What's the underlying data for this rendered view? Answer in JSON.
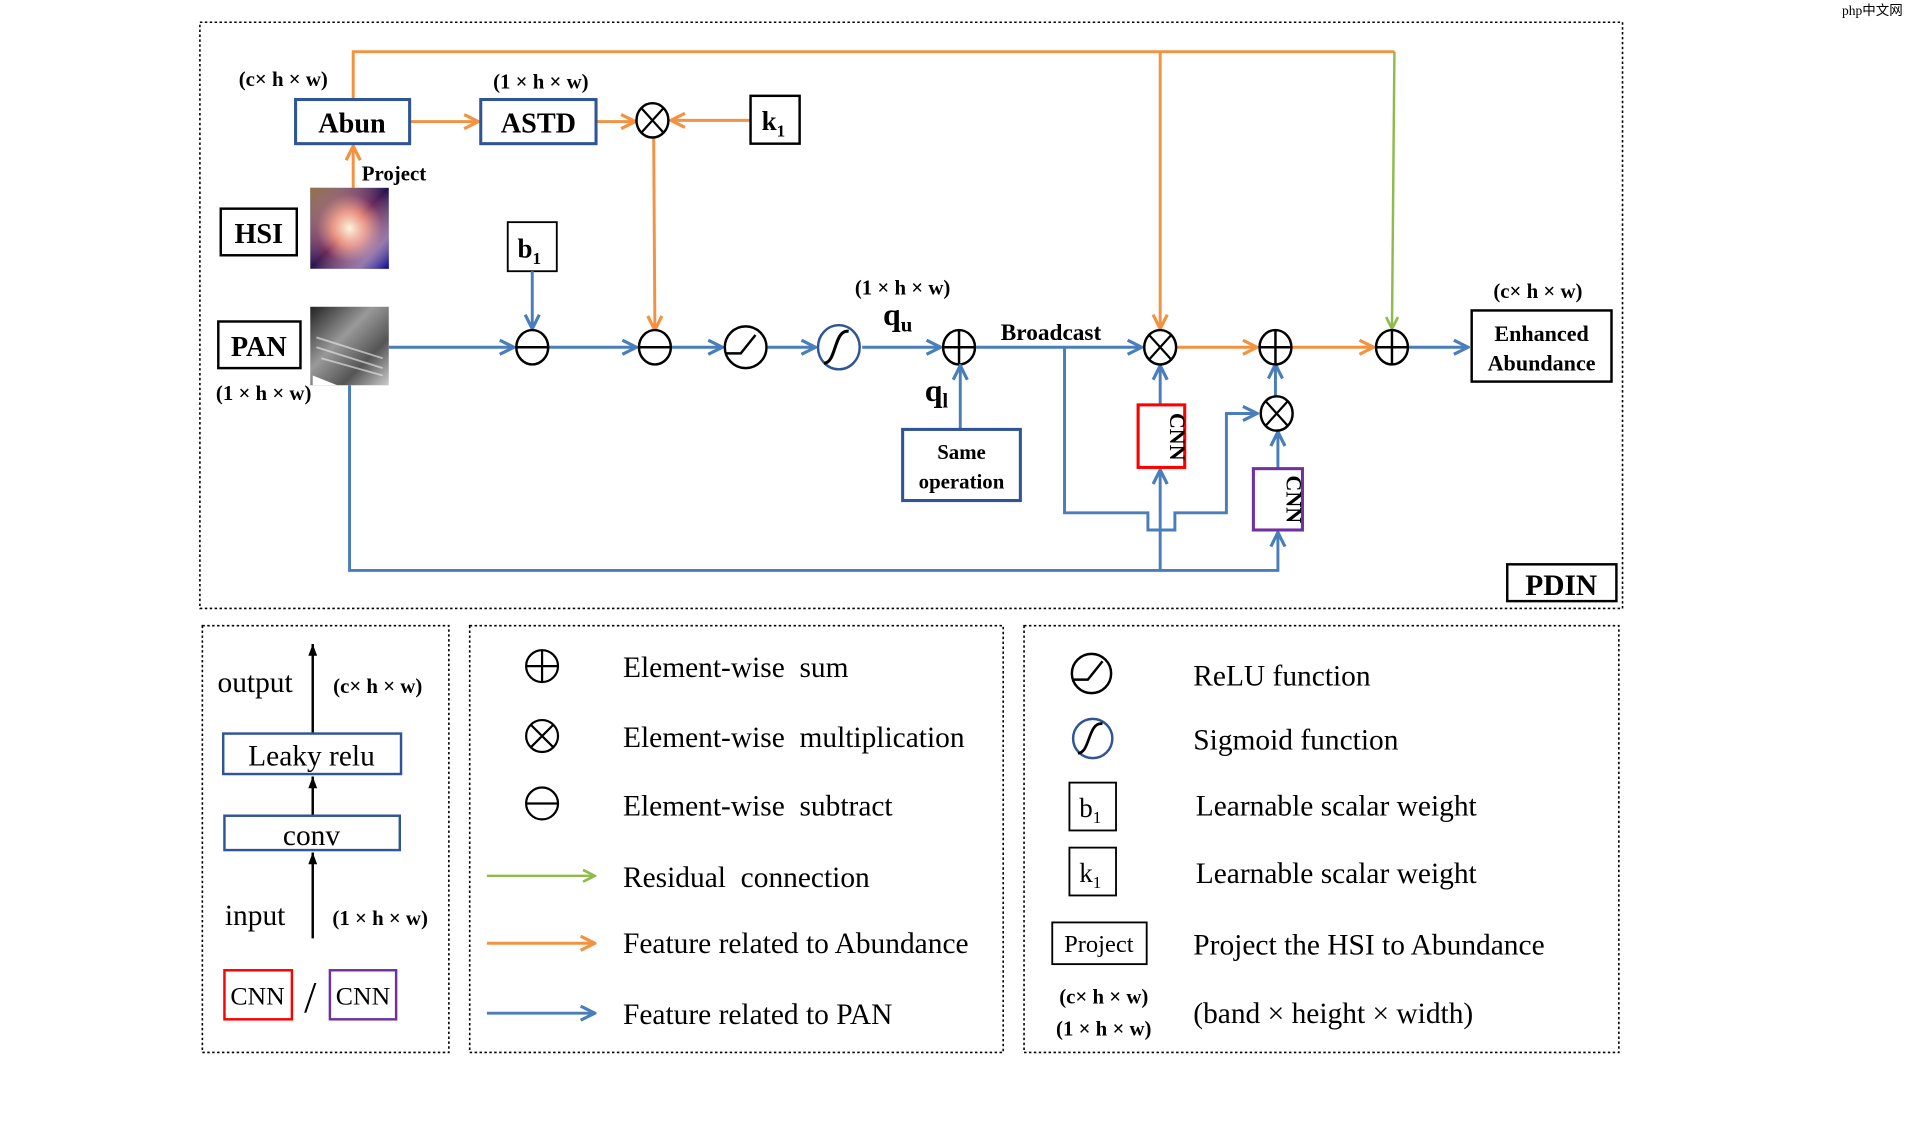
{
  "watermark": "php中文网",
  "diagram": {
    "nodes": {
      "abun": "Abun",
      "astd": "ASTD",
      "k1": "k",
      "k1_sub": "1",
      "b1": "b",
      "b1_sub": "1",
      "hsi": "HSI",
      "pan": "PAN",
      "project": "Project",
      "same_operation_line1": "Same",
      "same_operation_line2": "operation",
      "broadcast": "Broadcast",
      "qu": "q",
      "qu_sub": "u",
      "ql": "q",
      "ql_sub": "l",
      "cnn_red": "CNN",
      "cnn_purple": "CNN",
      "enhanced_line1": "Enhanced",
      "enhanced_line2": "Abundance",
      "pdin": "PDIN"
    },
    "dims": {
      "abun": "(c× h × w)",
      "astd": "(1 × h × w)",
      "pan": "(1 × h × w)",
      "qu": "(1 × h × w)",
      "enhanced": "(c× h × w)"
    },
    "colors": {
      "abundance_feature": "#f39240",
      "pan_feature": "#4a7ebb",
      "residual": "#8fbb4a",
      "cnn_red": "#ff0000",
      "cnn_purple": "#7030a0"
    }
  },
  "legend_cnn": {
    "output": "output",
    "output_dim": "(c× h × w)",
    "leaky_relu": "Leaky relu",
    "conv": "conv",
    "input": "input",
    "input_dim": "(1 × h × w)",
    "cnn_red": "CNN",
    "slash": "/",
    "cnn_purple": "CNN"
  },
  "legend_ops": [
    {
      "icon": "circle-plus-icon",
      "label": "Element-wise  sum"
    },
    {
      "icon": "circle-times-icon",
      "label": "Element-wise  multiplication"
    },
    {
      "icon": "circle-minus-icon",
      "label": "Element-wise  subtract"
    },
    {
      "icon": "green-arrow-icon",
      "label": "Residual  connection"
    },
    {
      "icon": "orange-arrow-icon",
      "label": "Feature related to Abundance"
    },
    {
      "icon": "blue-arrow-icon",
      "label": "Feature related to PAN"
    }
  ],
  "legend_funcs": [
    {
      "icon": "relu-icon",
      "label": "ReLU function"
    },
    {
      "icon": "sigmoid-icon",
      "label": "Sigmoid function"
    },
    {
      "symbol": "b",
      "sub": "1",
      "label": "Learnable scalar weight"
    },
    {
      "symbol": "k",
      "sub": "1",
      "label": "Learnable scalar weight"
    },
    {
      "symbol": "Project",
      "label": "Project the HSI to Abundance"
    },
    {
      "dim1": "(c× h × w)",
      "dim2": "(1 × h × w)",
      "label": "(band × height × width)"
    }
  ]
}
